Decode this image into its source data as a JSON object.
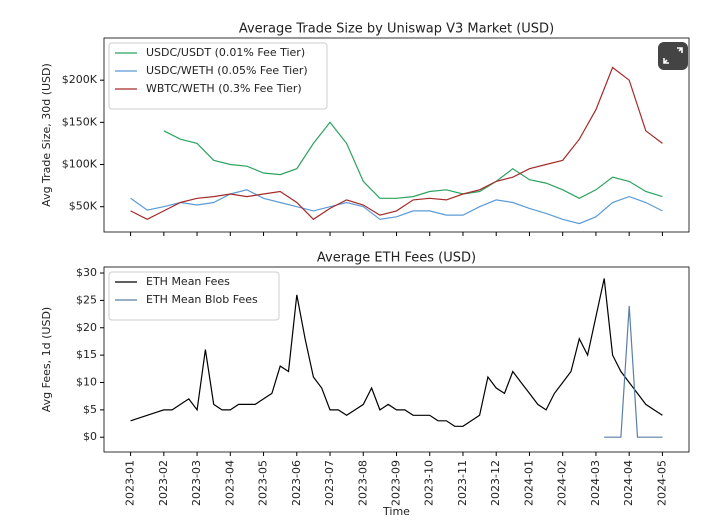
{
  "chart_data": [
    {
      "type": "line",
      "title": "Average Trade Size by Uniswap V3 Market (USD)",
      "y_label": "Avg Trade Size, 30d (USD)",
      "x": [
        0,
        0.5,
        1,
        1.5,
        2,
        2.5,
        3,
        3.5,
        4,
        4.5,
        5,
        5.5,
        6,
        6.5,
        7,
        7.5,
        8,
        8.5,
        9,
        9.5,
        10,
        10.5,
        11,
        11.5,
        12,
        12.5,
        13,
        13.5,
        14,
        14.5,
        15,
        15.5,
        16
      ],
      "xlim": [
        -0.8,
        16.8
      ],
      "xticks": [
        {
          "value": 0,
          "label": "2023-01"
        },
        {
          "value": 1,
          "label": "2023-02"
        },
        {
          "value": 2,
          "label": "2023-03"
        },
        {
          "value": 3,
          "label": "2023-04"
        },
        {
          "value": 4,
          "label": "2023-05"
        },
        {
          "value": 5,
          "label": "2023-06"
        },
        {
          "value": 6,
          "label": "2023-07"
        },
        {
          "value": 7,
          "label": "2023-08"
        },
        {
          "value": 8,
          "label": "2023-09"
        },
        {
          "value": 9,
          "label": "2023-10"
        },
        {
          "value": 10,
          "label": "2023-11"
        },
        {
          "value": 11,
          "label": "2023-12"
        },
        {
          "value": 12,
          "label": "2024-01"
        },
        {
          "value": 13,
          "label": "2024-02"
        },
        {
          "value": 14,
          "label": "2024-03"
        },
        {
          "value": 15,
          "label": "2024-04"
        },
        {
          "value": 16,
          "label": "2024-05"
        }
      ],
      "ylim": [
        20000,
        250000
      ],
      "yticks": [
        {
          "value": 50000,
          "label": "$50K"
        },
        {
          "value": 100000,
          "label": "$100K"
        },
        {
          "value": 150000,
          "label": "$150K"
        },
        {
          "value": 200000,
          "label": "$200K"
        }
      ],
      "legend": "upper left",
      "series": [
        {
          "name": "USDC/USDT (0.01%  Fee Tier)",
          "color": "#2ca25f",
          "values": [
            null,
            null,
            140000,
            130000,
            125000,
            105000,
            100000,
            98000,
            90000,
            88000,
            95000,
            125000,
            150000,
            125000,
            80000,
            60000,
            60000,
            62000,
            68000,
            70000,
            65000,
            68000,
            80000,
            95000,
            82000,
            78000,
            70000,
            60000,
            70000,
            85000,
            80000,
            68000,
            62000
          ]
        },
        {
          "name": "USDC/WETH (0.05% Fee Tier)",
          "color": "#5b9bd5",
          "values": [
            60000,
            46000,
            50000,
            55000,
            52000,
            55000,
            65000,
            70000,
            60000,
            55000,
            50000,
            45000,
            50000,
            55000,
            50000,
            35000,
            38000,
            45000,
            45000,
            40000,
            40000,
            50000,
            58000,
            55000,
            48000,
            42000,
            35000,
            30000,
            38000,
            55000,
            62000,
            55000,
            45000
          ]
        },
        {
          "name": "WBTC/WETH (0.3%  Fee Tier)",
          "color": "#a52a2a",
          "values": [
            45000,
            35000,
            45000,
            55000,
            60000,
            62000,
            65000,
            62000,
            65000,
            68000,
            55000,
            35000,
            48000,
            58000,
            52000,
            40000,
            45000,
            58000,
            60000,
            58000,
            65000,
            70000,
            80000,
            85000,
            95000,
            100000,
            105000,
            130000,
            165000,
            215000,
            200000,
            140000,
            125000
          ]
        }
      ]
    },
    {
      "type": "line",
      "title": "Average ETH Fees (USD)",
      "y_label": "Avg Fees, 1d (USD)",
      "x_label": "Time",
      "x": [
        0,
        0.25,
        0.5,
        0.75,
        1,
        1.25,
        1.5,
        1.75,
        2,
        2.25,
        2.5,
        2.75,
        3,
        3.25,
        3.5,
        3.75,
        4,
        4.25,
        4.5,
        4.75,
        5,
        5.25,
        5.5,
        5.75,
        6,
        6.25,
        6.5,
        6.75,
        7,
        7.25,
        7.5,
        7.75,
        8,
        8.25,
        8.5,
        8.75,
        9,
        9.25,
        9.5,
        9.75,
        10,
        10.25,
        10.5,
        10.75,
        11,
        11.25,
        11.5,
        11.75,
        12,
        12.25,
        12.5,
        12.75,
        13,
        13.25,
        13.5,
        13.75,
        14,
        14.25,
        14.5,
        14.75,
        15,
        15.25,
        15.5,
        15.75,
        16
      ],
      "xlim": [
        -0.8,
        16.8
      ],
      "xticks": [
        {
          "value": 0,
          "label": "2023-01"
        },
        {
          "value": 1,
          "label": "2023-02"
        },
        {
          "value": 2,
          "label": "2023-03"
        },
        {
          "value": 3,
          "label": "2023-04"
        },
        {
          "value": 4,
          "label": "2023-05"
        },
        {
          "value": 5,
          "label": "2023-06"
        },
        {
          "value": 6,
          "label": "2023-07"
        },
        {
          "value": 7,
          "label": "2023-08"
        },
        {
          "value": 8,
          "label": "2023-09"
        },
        {
          "value": 9,
          "label": "2023-10"
        },
        {
          "value": 10,
          "label": "2023-11"
        },
        {
          "value": 11,
          "label": "2023-12"
        },
        {
          "value": 12,
          "label": "2024-01"
        },
        {
          "value": 13,
          "label": "2024-02"
        },
        {
          "value": 14,
          "label": "2024-03"
        },
        {
          "value": 15,
          "label": "2024-04"
        },
        {
          "value": 16,
          "label": "2024-05"
        }
      ],
      "ylim": [
        -2.7,
        31.1
      ],
      "yticks": [
        {
          "value": 0,
          "label": "$0"
        },
        {
          "value": 5,
          "label": "$5"
        },
        {
          "value": 10,
          "label": "$10"
        },
        {
          "value": 15,
          "label": "$15"
        },
        {
          "value": 20,
          "label": "$20"
        },
        {
          "value": 25,
          "label": "$25"
        },
        {
          "value": 30,
          "label": "$30"
        }
      ],
      "legend": "upper left",
      "series": [
        {
          "name": "ETH Mean Fees",
          "color": "#000000",
          "values": [
            3,
            3.5,
            4,
            4.5,
            5,
            5,
            6,
            7,
            5,
            16,
            6,
            5,
            5,
            6,
            6,
            6,
            7,
            8,
            13,
            12,
            26,
            18,
            11,
            9,
            5,
            5,
            4,
            5,
            6,
            9,
            5,
            6,
            5,
            5,
            4,
            4,
            4,
            3,
            3,
            2,
            2,
            3,
            4,
            11,
            9,
            8,
            12,
            10,
            8,
            6,
            5,
            8,
            10,
            12,
            18,
            15,
            22,
            29,
            15,
            12,
            10,
            8,
            6,
            5,
            4
          ]
        },
        {
          "name": "ETH Mean Blob Fees",
          "color": "#5a7fa8",
          "x": [
            14.25,
            14.5,
            14.75,
            15,
            15.25,
            15.5,
            15.75,
            16
          ],
          "values": [
            0,
            0,
            0,
            24,
            0,
            0,
            0,
            0
          ]
        }
      ]
    }
  ]
}
